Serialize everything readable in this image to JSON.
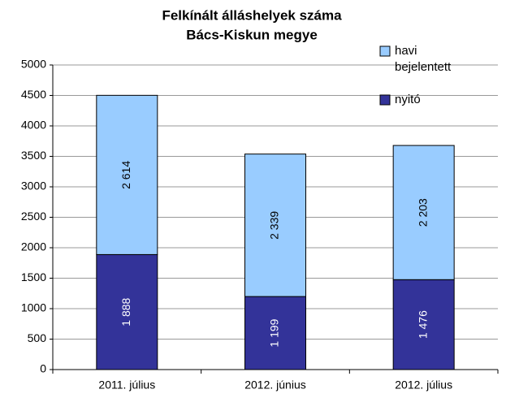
{
  "chart_data": {
    "type": "stacked_bar",
    "title": "Felkínált álláshelyek száma",
    "subtitle": "Bács-Kiskun megye",
    "categories": [
      "2011. július",
      "2012. június",
      "2012. július"
    ],
    "series": [
      {
        "name": "nyitó",
        "color": "#333399",
        "values": [
          1888,
          1199,
          1476
        ],
        "value_labels": [
          "1 888",
          "1 199",
          "1 476"
        ]
      },
      {
        "name": "havi bejelentett",
        "color": "#99ccff",
        "values": [
          2614,
          2339,
          2203
        ],
        "value_labels": [
          "2 614",
          "2 339",
          "2 203"
        ]
      }
    ],
    "ylim": [
      0,
      5000
    ],
    "yticks": [
      0,
      500,
      1000,
      1500,
      2000,
      2500,
      3000,
      3500,
      4000,
      4500,
      5000
    ],
    "grid": true,
    "legend": "top-right"
  }
}
